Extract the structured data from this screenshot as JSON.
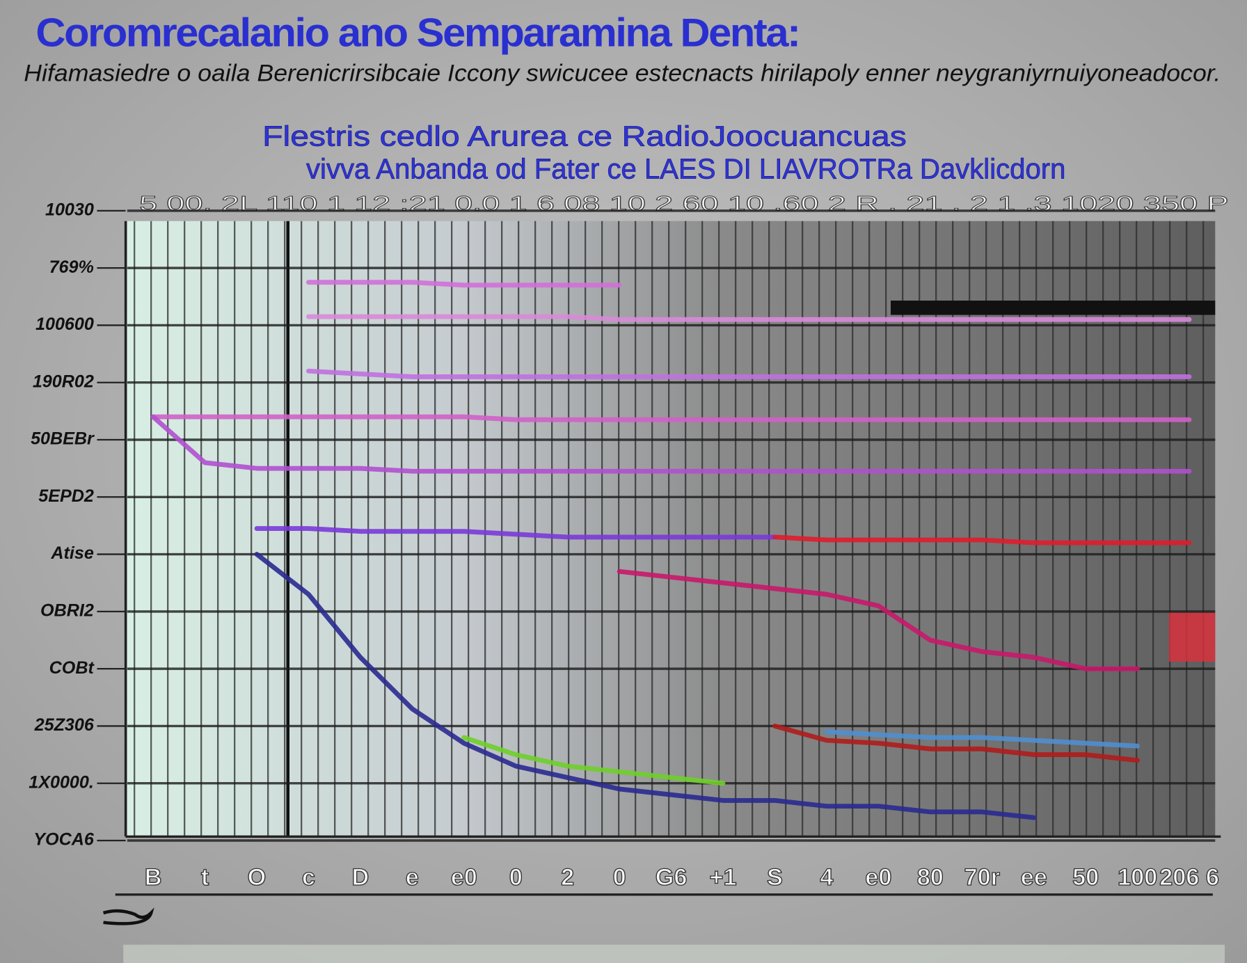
{
  "chart_data": {
    "type": "line",
    "title": "Coromrecalanio ano Semparamina Denta:",
    "subtitle": "Hifamasiedre o oaila Berenicrirsibcaie Iccony swicucee estecnacts hirilapoly enner neygraniyrnuiyoneadocor.",
    "chart_title_line1": "Flestris cedlo Arurea ce RadioJoocuancuas",
    "chart_title_line2": "vivva Anbanda od Fater ce LAES DI LIAVROTRa Davklicdorn",
    "top_axis_text": "5 00. 2L 110 1 12 :21 0.0 1 6 08 10 2 60 10 .60 2 R . 21 . 2 1 .3 1020 350 P",
    "categories": [
      "B",
      "t",
      "O",
      "c",
      "D",
      "e",
      "e0",
      "0",
      "2",
      "0",
      "G6",
      "+1",
      "S",
      "4",
      "e0",
      "80",
      "70r",
      "ee",
      "50",
      "100",
      "206 6"
    ],
    "ylim": [
      0,
      11
    ],
    "yticks": [
      {
        "value": 0,
        "label": "YOCA6"
      },
      {
        "value": 1,
        "label": "1X0000."
      },
      {
        "value": 2,
        "label": "25Z306"
      },
      {
        "value": 3,
        "label": "COBt"
      },
      {
        "value": 4,
        "label": "OBRI2"
      },
      {
        "value": 5,
        "label": "Atise"
      },
      {
        "value": 6,
        "label": "5EPD2"
      },
      {
        "value": 7,
        "label": "50BEBr"
      },
      {
        "value": 8,
        "label": "190R02"
      },
      {
        "value": 9,
        "label": "100600"
      },
      {
        "value": 10,
        "label": "769%"
      },
      {
        "value": 11,
        "label": "10030"
      }
    ],
    "grid": true,
    "series": [
      {
        "color": "#d070d8",
        "values": [
          null,
          null,
          null,
          9.75,
          9.75,
          9.75,
          9.7,
          9.7,
          9.7,
          9.7,
          null,
          null,
          null,
          null,
          null,
          null,
          null,
          null,
          null,
          null,
          null
        ]
      },
      {
        "color": "#d88ad8",
        "values": [
          null,
          null,
          null,
          9.15,
          9.15,
          9.15,
          9.15,
          9.15,
          9.15,
          9.1,
          9.1,
          9.1,
          9.1,
          9.1,
          9.1,
          9.1,
          9.1,
          9.1,
          9.1,
          9.1,
          9.1
        ]
      },
      {
        "color": "#c070e0",
        "values": [
          null,
          null,
          null,
          8.2,
          8.15,
          8.1,
          8.1,
          8.1,
          8.1,
          8.1,
          8.1,
          8.1,
          8.1,
          8.1,
          8.1,
          8.1,
          8.1,
          8.1,
          8.1,
          8.1,
          8.1
        ]
      },
      {
        "color": "#d060c8",
        "values": [
          7.4,
          7.4,
          7.4,
          7.4,
          7.4,
          7.4,
          7.4,
          7.35,
          7.35,
          7.35,
          7.35,
          7.35,
          7.35,
          7.35,
          7.35,
          7.35,
          7.35,
          7.35,
          7.35,
          7.35,
          7.35
        ]
      },
      {
        "color": "#b050d0",
        "values": [
          7.4,
          6.6,
          6.5,
          6.5,
          6.5,
          6.45,
          6.45,
          6.45,
          6.45,
          6.45,
          6.45,
          6.45,
          6.45,
          6.45,
          6.45,
          6.45,
          6.45,
          6.45,
          6.45,
          6.45,
          6.45
        ]
      },
      {
        "color": "#7a3ad8",
        "values": [
          null,
          null,
          5.45,
          5.45,
          5.4,
          5.4,
          5.4,
          5.35,
          5.3,
          5.3,
          5.3,
          5.3,
          5.3,
          null,
          null,
          null,
          null,
          null,
          null,
          null,
          null
        ]
      },
      {
        "color": "#e01c2c",
        "values": [
          null,
          null,
          null,
          null,
          null,
          null,
          null,
          null,
          null,
          null,
          null,
          null,
          5.3,
          5.25,
          5.25,
          5.25,
          5.25,
          5.2,
          5.2,
          5.2,
          5.2
        ]
      },
      {
        "color": "#c8186a",
        "values": [
          null,
          null,
          null,
          null,
          null,
          null,
          null,
          null,
          null,
          4.7,
          4.6,
          4.5,
          4.4,
          4.3,
          4.1,
          3.5,
          3.3,
          3.2,
          3.0,
          3.0,
          null
        ]
      },
      {
        "color": "#2a2a90",
        "values": [
          null,
          null,
          5.0,
          4.3,
          3.2,
          2.3,
          1.7,
          1.3,
          1.1,
          0.9,
          0.8,
          0.7,
          0.7,
          0.6,
          0.6,
          0.5,
          0.5,
          0.4,
          null,
          null,
          null
        ]
      },
      {
        "color": "#6fcf2a",
        "values": [
          null,
          null,
          null,
          null,
          null,
          null,
          1.8,
          1.5,
          1.3,
          1.2,
          1.1,
          1.0,
          null,
          null,
          null,
          null,
          null,
          null,
          null,
          null,
          null
        ]
      },
      {
        "color": "#4f8fd0",
        "values": [
          null,
          null,
          null,
          null,
          null,
          null,
          null,
          null,
          null,
          null,
          null,
          null,
          null,
          1.9,
          1.85,
          1.8,
          1.8,
          1.75,
          1.7,
          1.65,
          null
        ]
      },
      {
        "color": "#b01c1c",
        "values": [
          null,
          null,
          null,
          null,
          null,
          null,
          null,
          null,
          null,
          null,
          null,
          null,
          2.0,
          1.75,
          1.7,
          1.6,
          1.6,
          1.5,
          1.5,
          1.4,
          null
        ]
      }
    ]
  }
}
